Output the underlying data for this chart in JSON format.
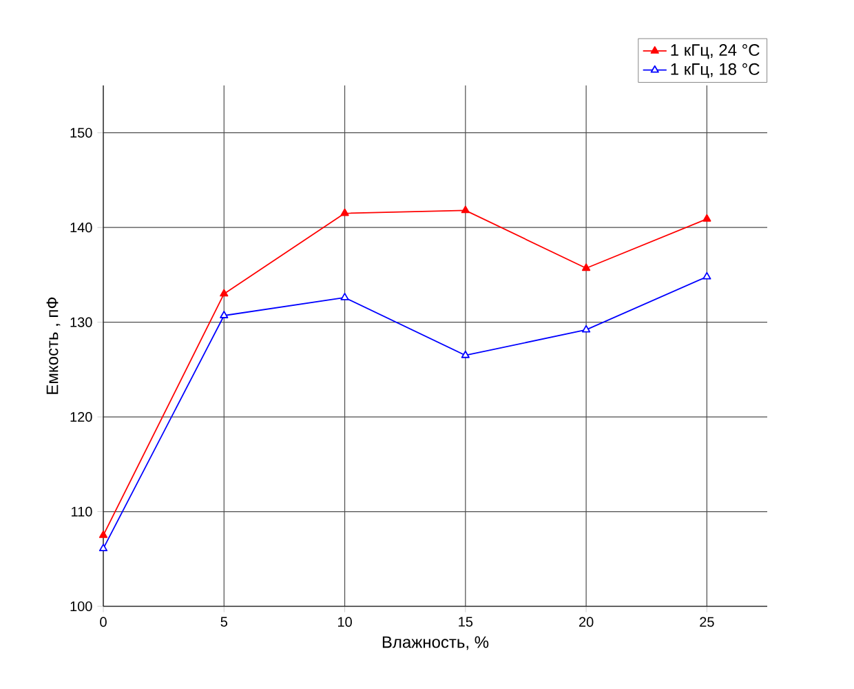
{
  "chart_data": {
    "type": "line",
    "xlabel": "Влажность, %",
    "ylabel": "Емкость , пФ",
    "x": [
      0,
      5,
      10,
      15,
      20,
      25
    ],
    "series": [
      {
        "name": "1 кГц, 24 °C",
        "color": "#ff0000",
        "values": [
          107.5,
          133.0,
          141.5,
          141.8,
          135.7,
          140.9
        ],
        "marker": "triangle"
      },
      {
        "name": "1 кГц, 18 °C",
        "color": "#0000ff",
        "values": [
          106.1,
          130.7,
          132.6,
          126.5,
          129.2,
          134.8
        ],
        "marker": "triangle"
      }
    ],
    "xlim": [
      0,
      27.5
    ],
    "ylim": [
      100,
      155
    ],
    "xticks": [
      0,
      5,
      10,
      15,
      20,
      25
    ],
    "yticks": [
      100,
      110,
      120,
      130,
      140,
      150
    ],
    "grid": true,
    "legend": "top right"
  }
}
